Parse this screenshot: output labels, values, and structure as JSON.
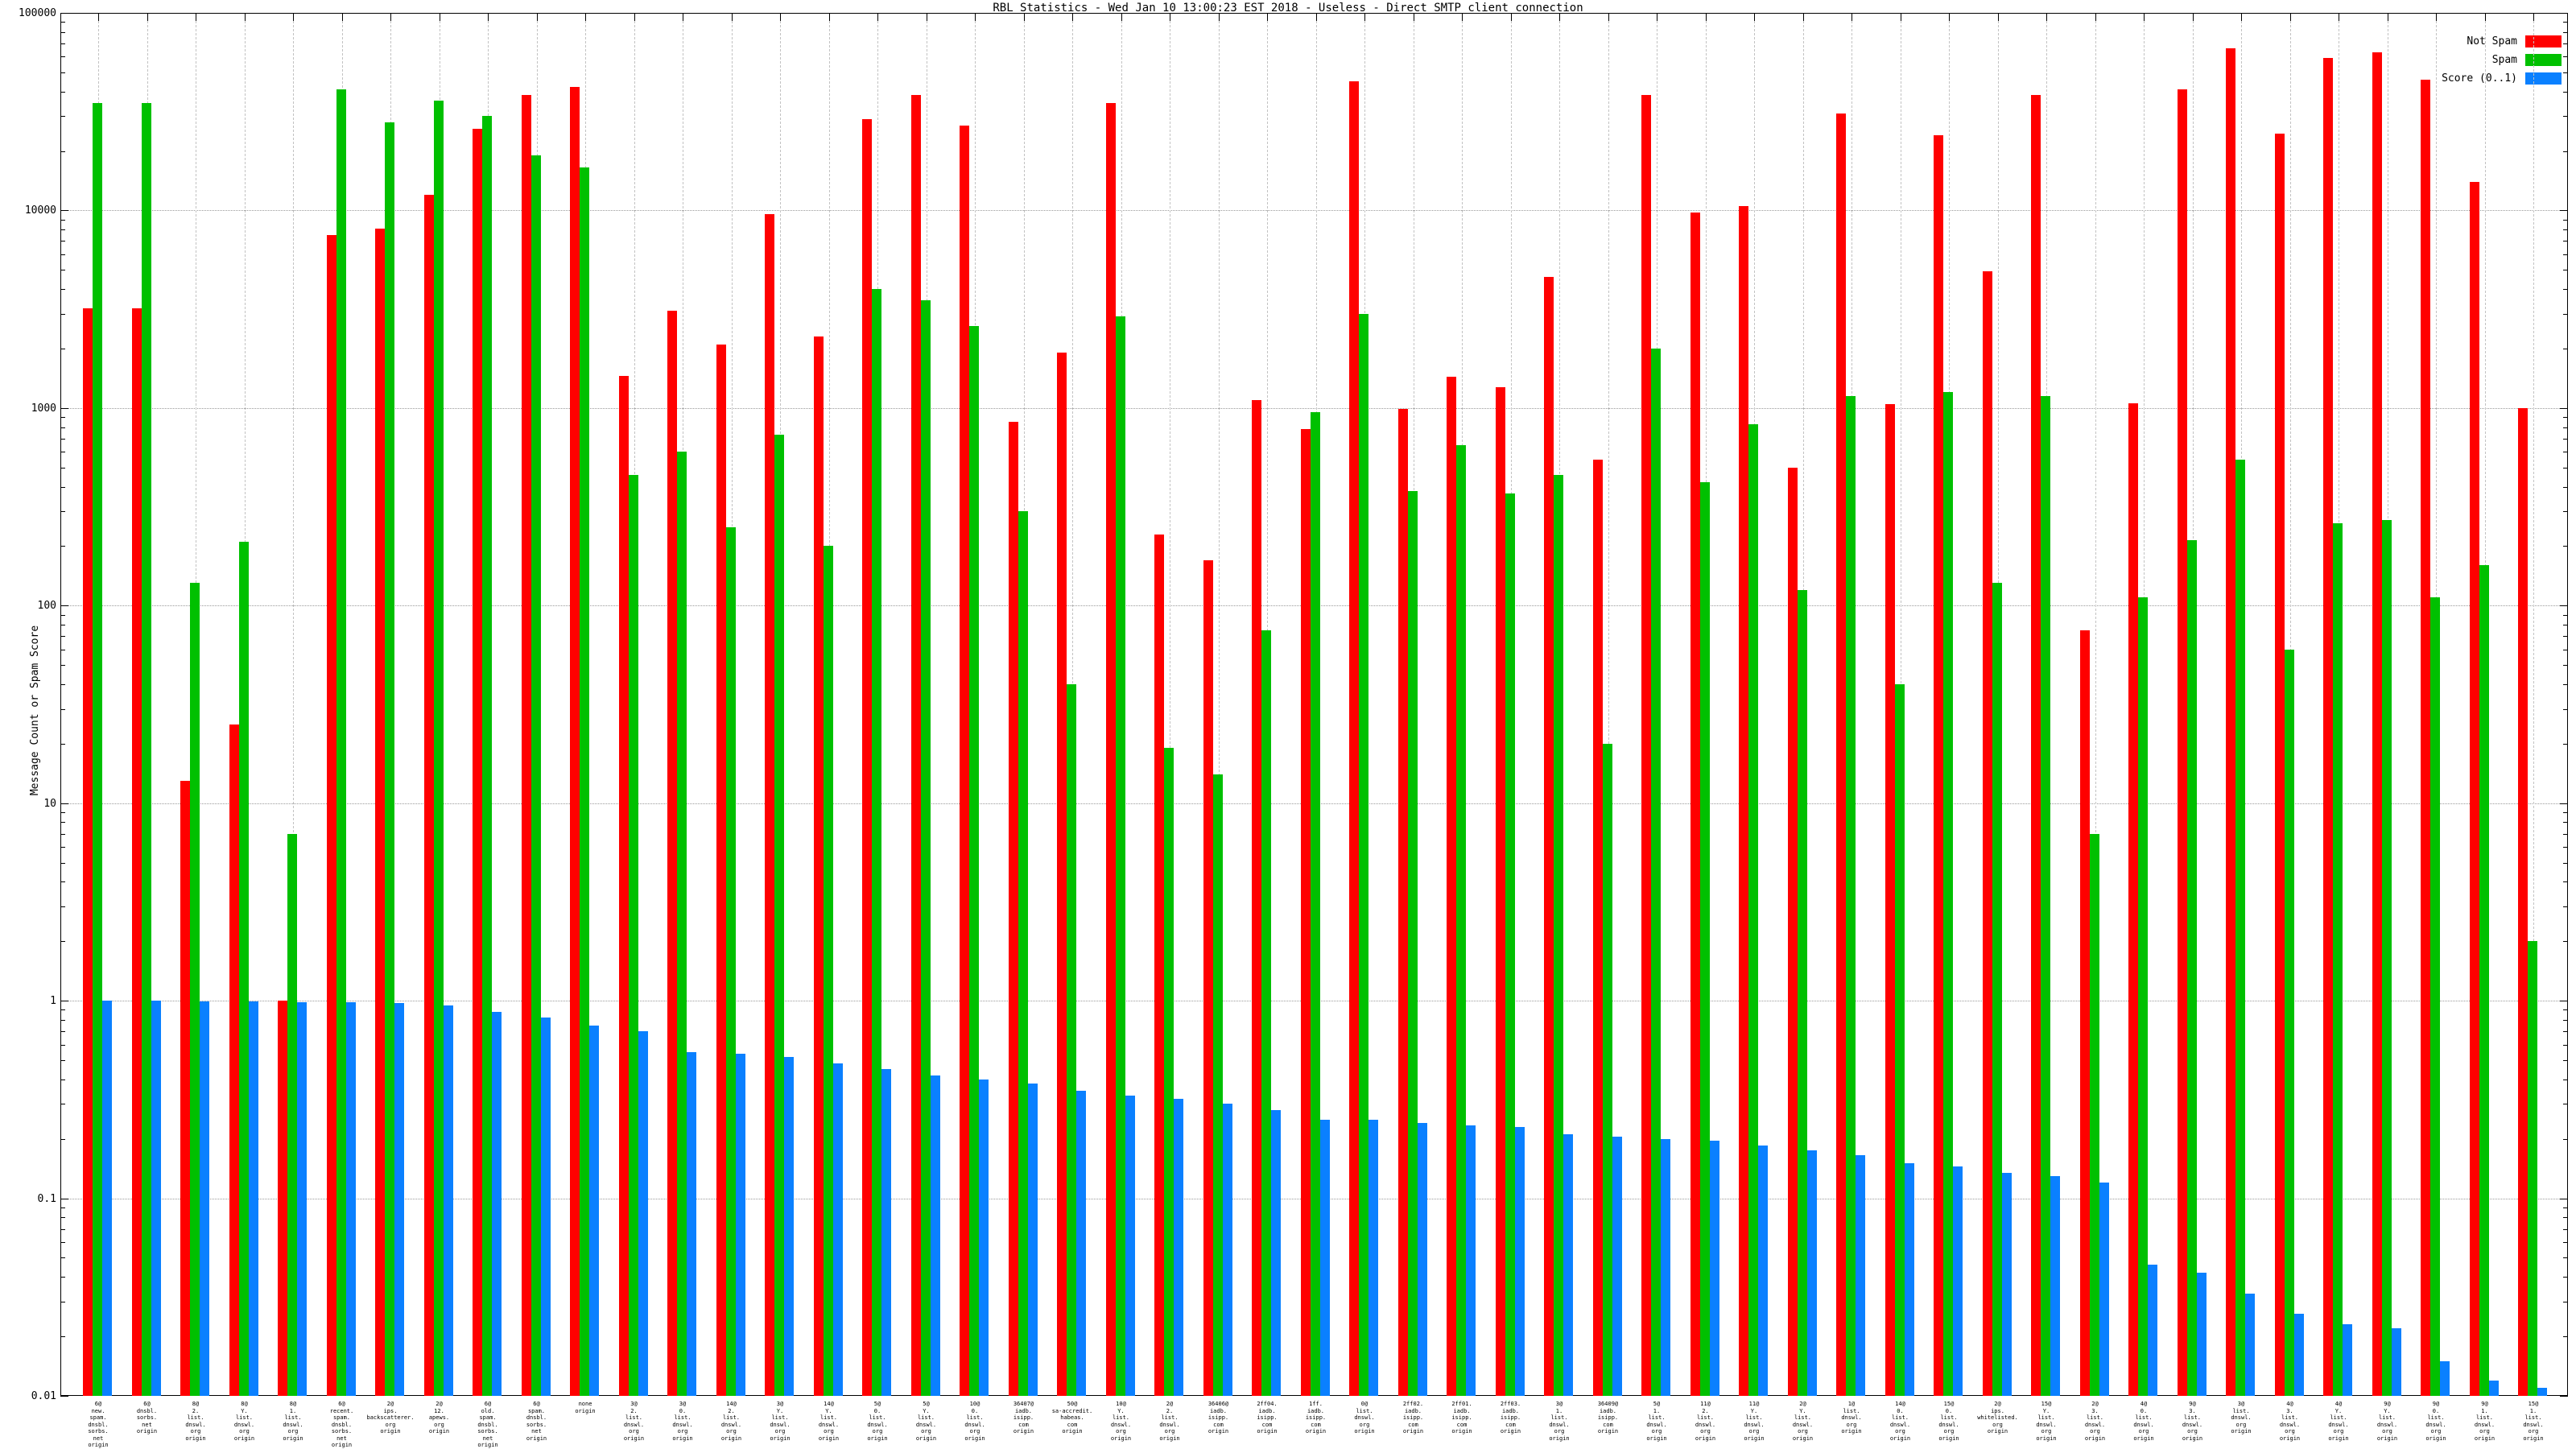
{
  "chart_data": {
    "type": "bar",
    "scale": "log",
    "title": "RBL Statistics - Wed Jan 10 13:00:23 EST 2018 - Useless - Direct SMTP client connection",
    "ylabel": "Message Count or Spam Score",
    "xlabel": "",
    "ylim": [
      0.01,
      100000
    ],
    "y_ticks": [
      "100000",
      "10000",
      "1000",
      "100",
      "10",
      "1",
      "0.1",
      "0.01"
    ],
    "grid": "on",
    "legend_position": "top-right",
    "legend": [
      {
        "label": "Not Spam",
        "color": "#ff0000"
      },
      {
        "label": "Spam",
        "color": "#00c000"
      },
      {
        "label": "Score (0..1)",
        "color": "#0a80ff"
      }
    ],
    "categories": [
      "6@\nnew.\nspam.\ndnsbl.\nsorbs.\nnet\norigin",
      "6@\ndnsbl.\nsorbs.\nnet\norigin",
      "8@\n2.\nlist.\ndnswl.\norg\norigin",
      "8@\nY.\nlist.\ndnswl.\norg\norigin",
      "8@\n1.\nlist.\ndnswl.\norg\norigin",
      "6@\nrecent.\nspam.\ndnsbl.\nsorbs.\nnet\norigin",
      "2@\nips.\nbackscatterer.\norg\norigin",
      "2@\n12.\napews.\norg\norigin",
      "6@\nold.\nspam.\ndnsbl.\nsorbs.\nnet\norigin",
      "6@\nspam.\ndnsbl.\nsorbs.\nnet\norigin",
      "none\norigin",
      "3@\n2.\nlist.\ndnswl.\norg\norigin",
      "3@\n0.\nlist.\ndnswl.\norg\norigin",
      "14@\n2.\nlist.\ndnswl.\norg\norigin",
      "3@\nY.\nlist.\ndnswl.\norg\norigin",
      "14@\nY.\nlist.\ndnswl.\norg\norigin",
      "5@\n0.\nlist.\ndnswl.\norg\norigin",
      "5@\nY.\nlist.\ndnswl.\norg\norigin",
      "10@\n0.\nlist.\ndnswl.\norg\norigin",
      "36407@\niadb.\nisipp.\ncom\norigin",
      "50@\nsa-accredit.\nhabeas.\ncom\norigin",
      "10@\nY.\nlist.\ndnswl.\norg\norigin",
      "2@\n2.\nlist.\ndnswl.\norg\norigin",
      "36406@\niadb.\nisipp.\ncom\norigin",
      "2ff04.\niadb.\nisipp.\ncom\norigin",
      "1ff.\niadb.\nisipp.\ncom\norigin",
      "0@\nlist.\ndnswl.\norg\norigin",
      "2ff02.\niadb.\nisipp.\ncom\norigin",
      "2ff01.\niadb.\nisipp.\ncom\norigin",
      "2ff03.\niadb.\nisipp.\ncom\norigin",
      "3@\n1.\nlist.\ndnswl.\norg\norigin",
      "36409@\niadb.\nisipp.\ncom\norigin",
      "5@\n1.\nlist.\ndnswl.\norg\norigin",
      "11@\n2.\nlist.\ndnswl.\norg\norigin",
      "11@\nY.\nlist.\ndnswl.\norg\norigin",
      "2@\nY.\nlist.\ndnswl.\norg\norigin",
      "1@\nlist.\ndnswl.\norg\norigin",
      "14@\n0.\nlist.\ndnswl.\norg\norigin",
      "15@\n0.\nlist.\ndnswl.\norg\norigin",
      "2@\nips.\nwhitelisted.\norg\norigin",
      "15@\nY.\nlist.\ndnswl.\norg\norigin",
      "2@\n3.\nlist.\ndnswl.\norg\norigin",
      "4@\n0.\nlist.\ndnswl.\norg\norigin",
      "9@\n3.\nlist.\ndnswl.\norg\norigin",
      "3@\nlist.\ndnswl.\norg\norigin",
      "4@\n3.\nlist.\ndnswl.\norg\norigin",
      "4@\nY.\nlist.\ndnswl.\norg\norigin",
      "9@\nY.\nlist.\ndnswl.\norg\norigin",
      "9@\n0.\nlist.\ndnswl.\norg\norigin",
      "9@\n1.\nlist.\ndnswl.\norg\norigin",
      "15@\n1.\nlist.\ndnswl.\norg\norigin"
    ],
    "series": [
      {
        "name": "Not Spam",
        "color": "#ff0000",
        "values": [
          3200,
          3200,
          13,
          25,
          1,
          7500,
          8100,
          12000,
          26000,
          38500,
          42000,
          1450,
          3100,
          2100,
          9600,
          2300,
          29000,
          38500,
          27000,
          850,
          1900,
          35000,
          230,
          170,
          1100,
          780,
          45000,
          990,
          1440,
          1280,
          4600,
          550,
          38500,
          9800,
          10500,
          500,
          31000,
          1050,
          24000,
          4900,
          38500,
          75,
          1060,
          41000,
          66000,
          24500,
          59000,
          63000,
          46000,
          14000,
          1000
        ]
      },
      {
        "name": "Spam",
        "color": "#00c000",
        "values": [
          35000,
          35000,
          130,
          210,
          7,
          41000,
          28000,
          36000,
          30000,
          19000,
          16500,
          460,
          600,
          250,
          730,
          200,
          4000,
          3500,
          2600,
          300,
          40,
          2900,
          19,
          14,
          75,
          950,
          3000,
          380,
          650,
          370,
          460,
          20,
          2000,
          420,
          830,
          120,
          1150,
          40,
          1200,
          130,
          1150,
          7,
          110,
          215,
          550,
          60,
          260,
          270,
          110,
          160,
          2
        ]
      },
      {
        "name": "Score (0..1)",
        "color": "#0a80ff",
        "values": [
          1.0,
          1.0,
          0.99,
          0.99,
          0.98,
          0.98,
          0.97,
          0.95,
          0.88,
          0.82,
          0.75,
          0.7,
          0.55,
          0.54,
          0.52,
          0.48,
          0.45,
          0.42,
          0.4,
          0.38,
          0.35,
          0.33,
          0.32,
          0.3,
          0.28,
          0.25,
          0.25,
          0.24,
          0.235,
          0.23,
          0.21,
          0.205,
          0.2,
          0.195,
          0.185,
          0.175,
          0.165,
          0.15,
          0.145,
          0.135,
          0.13,
          0.12,
          0.046,
          0.042,
          0.033,
          0.026,
          0.023,
          0.022,
          0.015,
          0.012,
          0.011
        ]
      }
    ]
  }
}
